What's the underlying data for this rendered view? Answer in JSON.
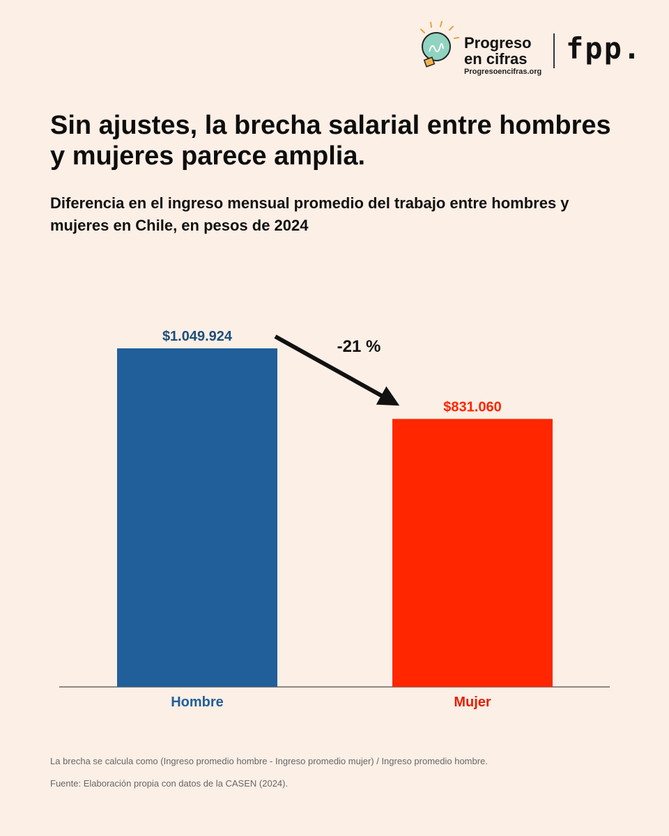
{
  "brand": {
    "name": "Progreso\nen cifras",
    "url": "Progresoencifras.org",
    "partner": "fpp.",
    "bulb_icon": "lightbulb-icon"
  },
  "title": "Sin ajustes, la brecha salarial entre hombres y mujeres parece amplia.",
  "subtitle": "Diferencia en el ingreso mensual promedio del trabajo entre hombres y mujeres en Chile, en pesos de 2024",
  "chart_data": {
    "type": "bar",
    "categories": [
      "Hombre",
      "Mujer"
    ],
    "values": [
      1049924,
      831060
    ],
    "value_labels": [
      "$1.049.924",
      "$831.060"
    ],
    "colors": [
      "#215f9a",
      "#ff2600"
    ],
    "ylim": [
      0,
      1050000
    ],
    "grid": false,
    "annotation": {
      "text": "-21 %",
      "arrow": "from Hombre to Mujer"
    }
  },
  "footnotes": {
    "method": "La brecha se calcula como (Ingreso promedio hombre - Ingreso promedio mujer) / Ingreso promedio hombre.",
    "source": "Fuente: Elaboración propia con datos de la CASEN (2024)."
  }
}
